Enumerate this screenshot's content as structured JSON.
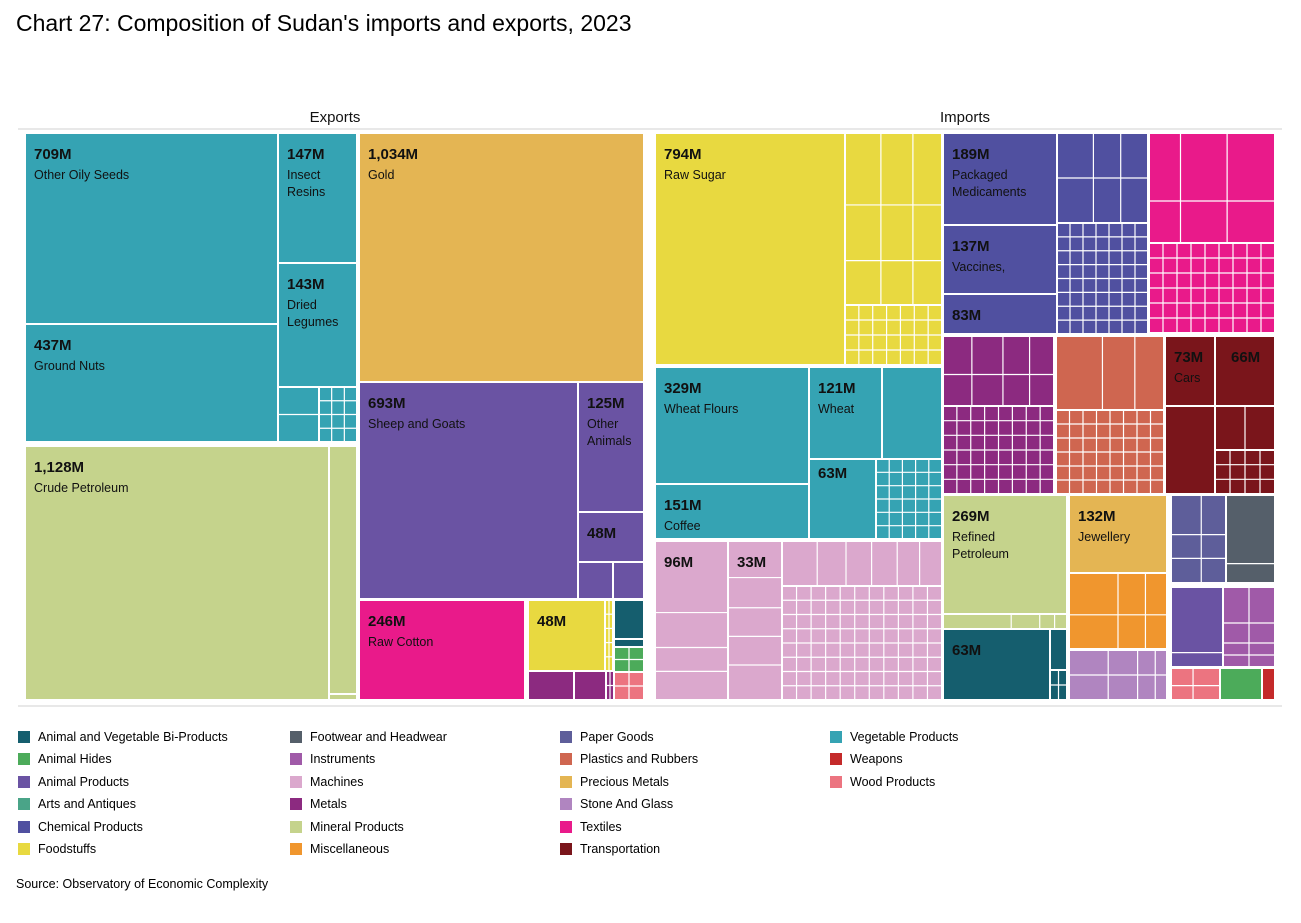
{
  "title": "Chart 27: Composition of Sudan's imports and exports, 2023",
  "source": "Source: Observatory of Economic Complexity",
  "chart_data": {
    "type": "treemap",
    "title": "Chart 27: Composition of Sudan's imports and exports, 2023",
    "unit": "USD",
    "panels": [
      {
        "name": "Exports",
        "items": [
          {
            "value": "709M",
            "label": "Other Oily Seeds",
            "category": "Vegetable Products"
          },
          {
            "value": "147M",
            "label": "Insect Resins",
            "category": "Vegetable Products"
          },
          {
            "value": "143M",
            "label": "Dried Legumes",
            "category": "Vegetable Products"
          },
          {
            "value": "437M",
            "label": "Ground Nuts",
            "category": "Vegetable Products"
          },
          {
            "value": "1,128M",
            "label": "Crude Petroleum",
            "category": "Mineral Products"
          },
          {
            "value": "1,034M",
            "label": "Gold",
            "category": "Precious Metals"
          },
          {
            "value": "693M",
            "label": "Sheep and Goats",
            "category": "Animal Products"
          },
          {
            "value": "125M",
            "label": "Other Animals",
            "category": "Animal Products"
          },
          {
            "value": "48M",
            "label": "",
            "category": "Animal Products"
          },
          {
            "value": "246M",
            "label": "Raw Cotton",
            "category": "Textiles"
          },
          {
            "value": "48M",
            "label": "",
            "category": "Foodstuffs"
          }
        ]
      },
      {
        "name": "Imports",
        "items": [
          {
            "value": "794M",
            "label": "Raw Sugar",
            "category": "Foodstuffs"
          },
          {
            "value": "189M",
            "label": "Packaged Medicaments",
            "category": "Chemical Products"
          },
          {
            "value": "137M",
            "label": "Vaccines,",
            "category": "Chemical Products"
          },
          {
            "value": "83M",
            "label": "",
            "category": "Chemical Products"
          },
          {
            "value": "329M",
            "label": "Wheat Flours",
            "category": "Vegetable Products"
          },
          {
            "value": "121M",
            "label": "Wheat",
            "category": "Vegetable Products"
          },
          {
            "value": "151M",
            "label": "Coffee",
            "category": "Vegetable Products"
          },
          {
            "value": "63M",
            "label": "",
            "category": "Vegetable Products"
          },
          {
            "value": "73M",
            "label": "Cars",
            "category": "Transportation"
          },
          {
            "value": "66M",
            "label": "",
            "category": "Transportation"
          },
          {
            "value": "96M",
            "label": "",
            "category": "Machines"
          },
          {
            "value": "33M",
            "label": "",
            "category": "Machines"
          },
          {
            "value": "269M",
            "label": "Refined Petroleum",
            "category": "Mineral Products"
          },
          {
            "value": "132M",
            "label": "Jewellery",
            "category": "Precious Metals"
          },
          {
            "value": "63M",
            "label": "",
            "category": "Animal and Vegetable Bi-Products"
          }
        ]
      }
    ]
  },
  "legend": [
    {
      "label": "Animal and Vegetable Bi-Products",
      "color": "#155e6e"
    },
    {
      "label": "Animal Hides",
      "color": "#4cab5a"
    },
    {
      "label": "Animal Products",
      "color": "#6a53a3"
    },
    {
      "label": "Arts and Antiques",
      "color": "#4aa488"
    },
    {
      "label": "Chemical Products",
      "color": "#5050a0"
    },
    {
      "label": "Foodstuffs",
      "color": "#e8d940"
    },
    {
      "label": "Footwear and Headwear",
      "color": "#555f6a"
    },
    {
      "label": "Instruments",
      "color": "#a05aa8"
    },
    {
      "label": "Machines",
      "color": "#dba8cd"
    },
    {
      "label": "Metals",
      "color": "#8c2a80"
    },
    {
      "label": "Mineral Products",
      "color": "#c5d38c"
    },
    {
      "label": "Miscellaneous",
      "color": "#f0962e"
    },
    {
      "label": "Paper Goods",
      "color": "#5e5e9a"
    },
    {
      "label": "Plastics and Rubbers",
      "color": "#cf6650"
    },
    {
      "label": "Precious Metals",
      "color": "#e4b553"
    },
    {
      "label": "Stone And Glass",
      "color": "#b085c0"
    },
    {
      "label": "Textiles",
      "color": "#e91a8a"
    },
    {
      "label": "Transportation",
      "color": "#7a151b"
    },
    {
      "label": "Vegetable Products",
      "color": "#35a3b3"
    },
    {
      "label": "Weapons",
      "color": "#c42a2a"
    },
    {
      "label": "Wood Products",
      "color": "#ec7480"
    }
  ]
}
